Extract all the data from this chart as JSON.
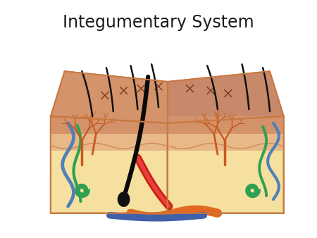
{
  "title": "Integumentary System",
  "title_fontsize": 17,
  "bg_color": "#ffffff",
  "skin_surface_color": "#d4936a",
  "skin_epi_color": "#e8a87a",
  "skin_dermis_color": "#f2c898",
  "skin_hypo_color": "#f5e0a0",
  "skin_fat_color": "#e8c848",
  "border_color": "#c87840",
  "hair_color": "#111111",
  "brown_vessel": "#c85820",
  "blue_vessel": "#5080b8",
  "green_vessel": "#30a050",
  "red_vessel": "#cc2010",
  "orange_vessel": "#e06820",
  "layer_border": "#c87840"
}
